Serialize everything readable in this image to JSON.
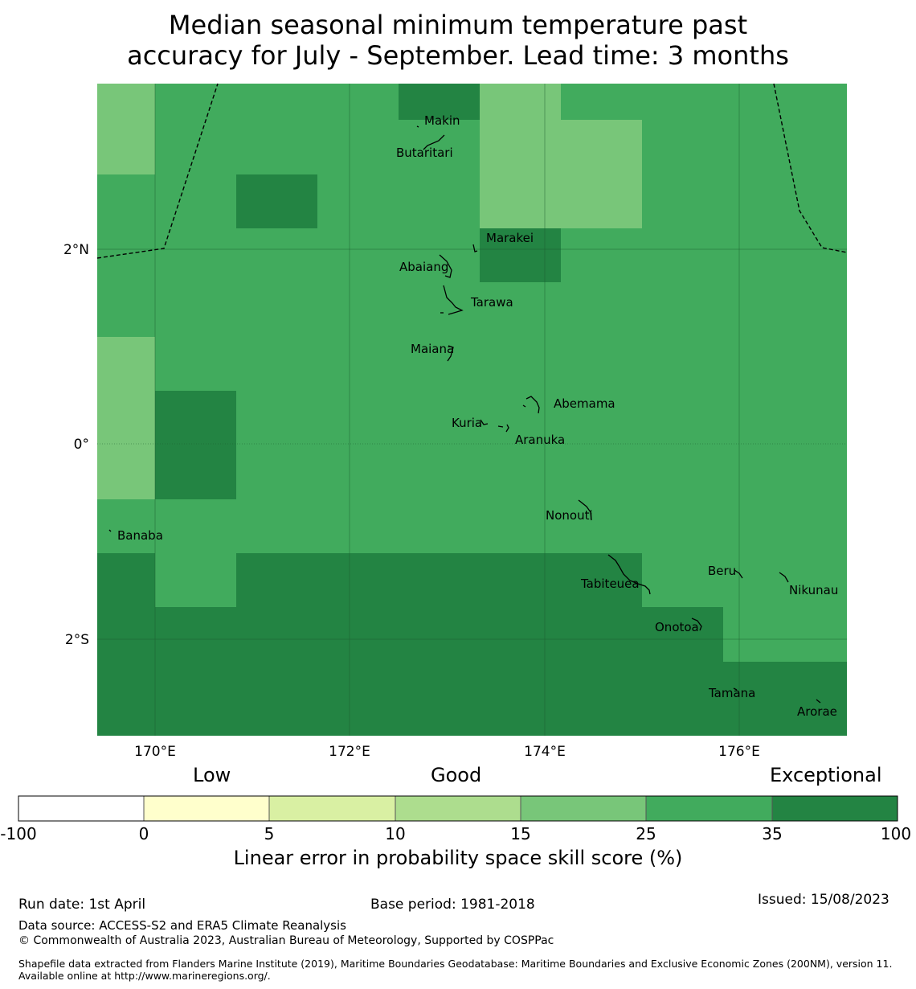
{
  "title": {
    "line1": "Median seasonal minimum temperature past",
    "line2": "accuracy for July - September. Lead time: 3 months"
  },
  "map": {
    "lat_ticks": [
      "2°N",
      "0°",
      "2°S"
    ],
    "lon_ticks": [
      "170°E",
      "172°E",
      "174°E",
      "176°E"
    ],
    "islands": [
      "Makin",
      "Butaritari",
      "Marakei",
      "Abaiang",
      "Tarawa",
      "Maiana",
      "Abemama",
      "Kuria",
      "Aranuka",
      "Nonouti",
      "Banaba",
      "Tabiteuea",
      "Beru",
      "Nikunau",
      "Onotoa",
      "Tamana",
      "Arorae"
    ],
    "grid_colors": {
      "exceptional": "#238443",
      "good_high": "#41ab5d",
      "good_low": "#78c679"
    }
  },
  "colorbar": {
    "categories": [
      "Low",
      "Good",
      "Exceptional"
    ],
    "ticks": [
      "-100",
      "0",
      "5",
      "10",
      "15",
      "25",
      "35",
      "100"
    ],
    "colors": [
      "#ffffff",
      "#ffffcc",
      "#d9f0a3",
      "#addd8e",
      "#78c679",
      "#41ab5d",
      "#238443"
    ],
    "label": "Linear error in probability space skill score (%)"
  },
  "footer": {
    "run_date": "Run date: 1st April",
    "base_period": "Base period: 1981-2018",
    "issued": "Issued: 15/08/2023",
    "data_source": "Data source: ACCESS-S2 and ERA5 Climate Reanalysis",
    "copyright": "© Commonwealth of Australia 2023, Australian Bureau of Meteorology, Supported by COSPPac",
    "shapefile": "Shapefile data extracted from Flanders Marine Institute (2019), Maritime Boundaries Geodatabase: Maritime Boundaries and Exclusive Economic Zones (200NM), version 11. Available online at http://www.marineregions.org/."
  }
}
